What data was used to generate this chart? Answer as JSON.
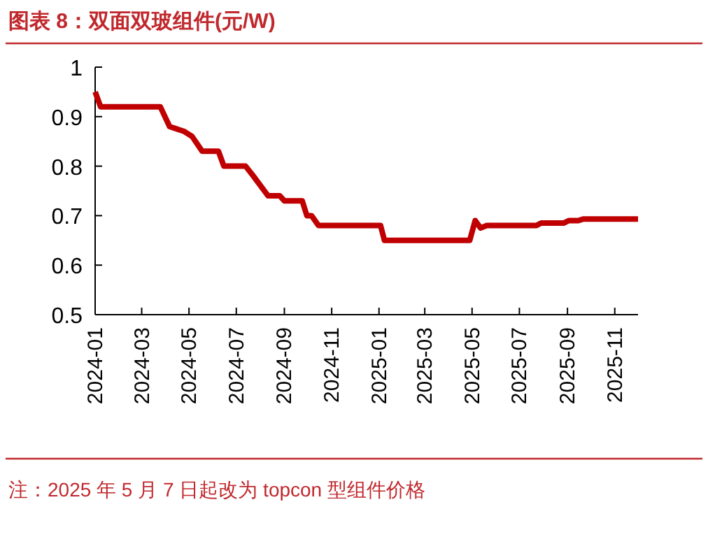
{
  "chart_data": {
    "type": "line",
    "title": "图表 8：双面双玻组件(元/W)",
    "x": [
      "2024-01-01",
      "2024-01-08",
      "2024-03-25",
      "2024-04-06",
      "2024-04-25",
      "2024-05-05",
      "2024-05-18",
      "2024-06-08",
      "2024-06-15",
      "2024-07-13",
      "2024-07-23",
      "2024-08-11",
      "2024-08-26",
      "2024-09-01",
      "2024-09-24",
      "2024-09-30",
      "2024-10-06",
      "2024-10-15",
      "2025-01-03",
      "2025-01-08",
      "2025-04-28",
      "2025-05-05",
      "2025-05-12",
      "2025-05-20",
      "2025-07-23",
      "2025-07-29",
      "2025-08-27",
      "2025-09-03",
      "2025-09-15",
      "2025-09-21",
      "2025-12-01"
    ],
    "series": [
      {
        "color": "#c00000",
        "values": [
          0.95,
          0.92,
          0.92,
          0.88,
          0.87,
          0.86,
          0.83,
          0.83,
          0.8,
          0.8,
          0.78,
          0.74,
          0.74,
          0.73,
          0.73,
          0.7,
          0.7,
          0.68,
          0.68,
          0.65,
          0.65,
          0.69,
          0.675,
          0.68,
          0.68,
          0.685,
          0.685,
          0.69,
          0.69,
          0.693,
          0.693
        ]
      }
    ],
    "xlim": [
      "2024-01-01",
      "2025-12-01"
    ],
    "xticks": [
      "2024-01",
      "2024-03",
      "2024-05",
      "2024-07",
      "2024-09",
      "2024-11",
      "2025-01",
      "2025-03",
      "2025-05",
      "2025-07",
      "2025-09",
      "2025-11"
    ],
    "ylim": [
      0.5,
      1
    ],
    "yticks": [
      0.5,
      0.6,
      0.7,
      0.8,
      0.9,
      1
    ],
    "grid": false,
    "annotations": [
      "注：2025 年 5 月 7 日起改为 topcon 型组件价格"
    ]
  }
}
